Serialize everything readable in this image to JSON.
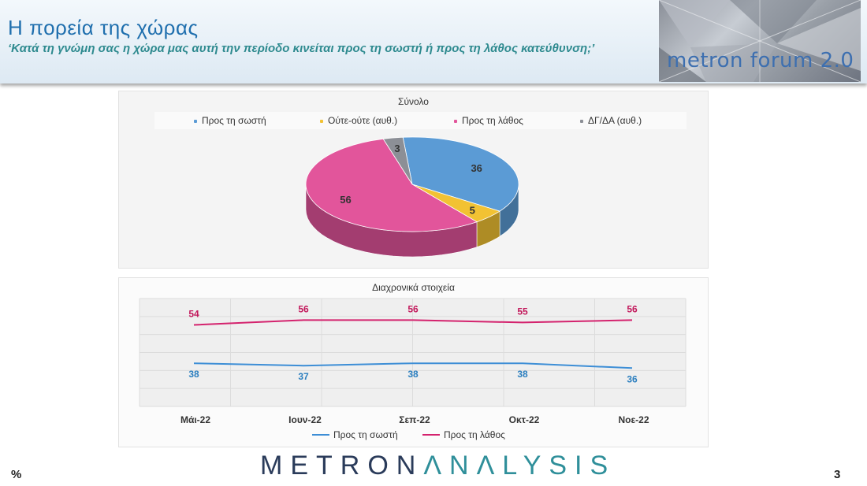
{
  "header": {
    "title": "Η πορεία της χώρας",
    "subtitle": "‘Κατά τη γνώμη σας η χώρα μας αυτή την περίοδο κινείται προς τη σωστή ή προς τη λάθος κατεύθυνση;’",
    "event_logo": "metron forum 2.0"
  },
  "footer": {
    "brand_part1": "METRON",
    "brand_part2": "ΛNΛLYSIS",
    "unit": "%",
    "page_number": "3"
  },
  "colors": {
    "correct": "#5b9bd5",
    "neither": "#f2c233",
    "wrong": "#e2559b",
    "dkna": "#8c8f96",
    "line_correct": "#3d8ed6",
    "line_wrong": "#d4236e"
  },
  "chart_data": [
    {
      "type": "pie",
      "title": "Σύνολο",
      "legend": [
        "Προς τη σωστή",
        "Ούτε-ούτε (αυθ.)",
        "Προς τη λάθος",
        "ΔΓ/ΔΑ (αυθ.)"
      ],
      "legend_position": "top",
      "slices": [
        {
          "name": "Προς τη σωστή",
          "value": 36
        },
        {
          "name": "Ούτε-ούτε (αυθ.)",
          "value": 5
        },
        {
          "name": "Προς τη λάθος",
          "value": 56
        },
        {
          "name": "ΔΓ/ΔΑ (αυθ.)",
          "value": 3
        }
      ]
    },
    {
      "type": "line",
      "title": "Διαχρονικά στοιχεία",
      "categories": [
        "Μάι-22",
        "Ιουν-22",
        "Σεπ-22",
        "Οκτ-22",
        "Νοε-22"
      ],
      "series": [
        {
          "name": "Προς τη σωστή",
          "values": [
            38,
            37,
            38,
            38,
            36
          ]
        },
        {
          "name": "Προς τη λάθος",
          "values": [
            54,
            56,
            56,
            55,
            56
          ]
        }
      ],
      "legend_position": "bottom",
      "grid": true
    }
  ]
}
